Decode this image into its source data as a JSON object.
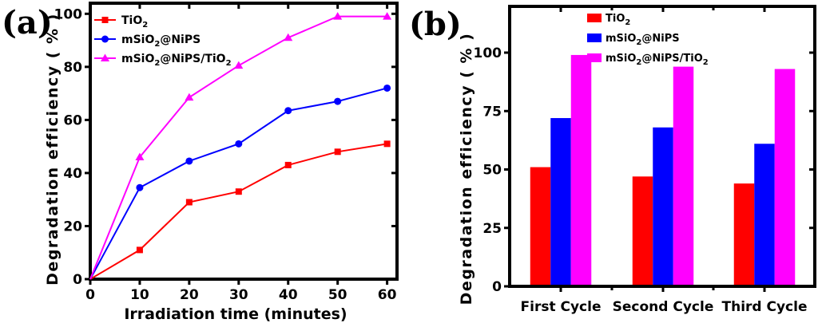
{
  "chart_data": [
    {
      "panel": "(a)",
      "type": "line",
      "title": "",
      "xlabel": "Irradiation time (minutes)",
      "ylabel": "Degradation efficiency ( % )",
      "x": [
        0,
        10,
        20,
        30,
        40,
        50,
        60
      ],
      "xticks": [
        "0",
        "10",
        "20",
        "30",
        "40",
        "50",
        "60"
      ],
      "yticks": [
        "0",
        "20",
        "40",
        "60",
        "80",
        "100"
      ],
      "xlim": [
        0,
        62
      ],
      "ylim": [
        0,
        104
      ],
      "grid": false,
      "legend_position": "top-left",
      "series": [
        {
          "name": "TiO2",
          "label_main": "TiO",
          "label_sub": "2",
          "label_tail": "",
          "color": "#ff0000",
          "marker": "square",
          "values": [
            0,
            11,
            29,
            33,
            43,
            48,
            51
          ]
        },
        {
          "name": "mSiO2@NiPS",
          "label_main": "mSiO",
          "label_sub": "2",
          "label_tail": "@NiPS",
          "color": "#0000ff",
          "marker": "circle",
          "values": [
            0,
            34.5,
            44.5,
            51,
            63.5,
            67,
            72
          ]
        },
        {
          "name": "mSiO2@NiPS/TiO2",
          "label_main": "mSiO",
          "label_sub": "2",
          "label_tail": "@NiPS/TiO",
          "label_sub2": "2",
          "color": "#ff00ff",
          "marker": "triangle",
          "values": [
            0,
            46,
            68.5,
            80.5,
            91,
            99,
            99
          ]
        }
      ]
    },
    {
      "panel": "(b)",
      "type": "bar",
      "title": "",
      "xlabel": "",
      "ylabel": "Degradation efficiency ( % )",
      "categories": [
        "First Cycle",
        "Second Cycle",
        "Third Cycle"
      ],
      "yticks": [
        "0",
        "25",
        "50",
        "75",
        "100"
      ],
      "ylim": [
        0,
        120
      ],
      "grid": false,
      "legend_position": "top-center",
      "series": [
        {
          "name": "TiO2",
          "label_main": "TiO",
          "label_sub": "2",
          "label_tail": "",
          "color": "#ff0000",
          "values": [
            51,
            47,
            44
          ]
        },
        {
          "name": "mSiO2@NiPS",
          "label_main": "mSiO",
          "label_sub": "2",
          "label_tail": "@NiPS",
          "color": "#0000ff",
          "values": [
            72,
            68,
            61
          ]
        },
        {
          "name": "mSiO2@NiPS/TiO2",
          "label_main": "mSiO",
          "label_sub": "2",
          "label_tail": "@NiPS/TiO",
          "label_sub2": "2",
          "color": "#ff00ff",
          "values": [
            99,
            94,
            93
          ]
        }
      ]
    }
  ]
}
